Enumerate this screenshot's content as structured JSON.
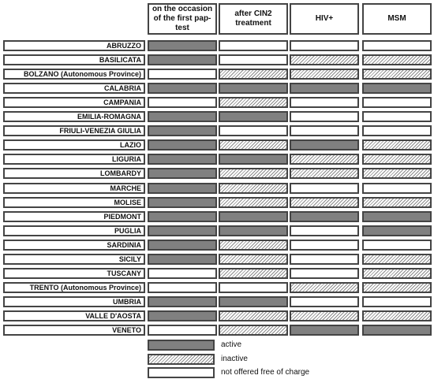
{
  "chart_data": {
    "type": "table",
    "columns": [
      "on the occasion of the first pap-test",
      "after CIN2 treatment",
      "HIV+",
      "MSM"
    ],
    "state_values": [
      "active",
      "inactive",
      "not offered free of charge"
    ],
    "rows": [
      {
        "region": "ABRUZZO",
        "states": [
          "active",
          "free",
          "free",
          "free"
        ]
      },
      {
        "region": "BASILICATA",
        "states": [
          "active",
          "free",
          "inactive",
          "inactive"
        ]
      },
      {
        "region": "BOLZANO (Autonomous Province)",
        "states": [
          "free",
          "inactive",
          "inactive",
          "inactive"
        ]
      },
      {
        "region": "CALABRIA",
        "states": [
          "active",
          "active",
          "active",
          "active"
        ]
      },
      {
        "region": "CAMPANIA",
        "states": [
          "free",
          "inactive",
          "free",
          "free"
        ]
      },
      {
        "region": "EMILIA-ROMAGNA",
        "states": [
          "active",
          "active",
          "free",
          "free"
        ]
      },
      {
        "region": "FRIULI-VENEZIA GIULIA",
        "states": [
          "active",
          "free",
          "free",
          "free"
        ]
      },
      {
        "region": "LAZIO",
        "states": [
          "active",
          "inactive",
          "active",
          "inactive"
        ]
      },
      {
        "region": "LIGURIA",
        "states": [
          "active",
          "active",
          "inactive",
          "inactive"
        ]
      },
      {
        "region": "LOMBARDY",
        "states": [
          "active",
          "inactive",
          "inactive",
          "inactive"
        ]
      },
      {
        "region": "MARCHE",
        "states": [
          "active",
          "inactive",
          "free",
          "free"
        ]
      },
      {
        "region": "MOLISE",
        "states": [
          "active",
          "inactive",
          "inactive",
          "inactive"
        ]
      },
      {
        "region": "PIEDMONT",
        "states": [
          "active",
          "active",
          "active",
          "active"
        ]
      },
      {
        "region": "PUGLIA",
        "states": [
          "active",
          "active",
          "free",
          "active"
        ]
      },
      {
        "region": "SARDINIA",
        "states": [
          "active",
          "inactive",
          "free",
          "free"
        ]
      },
      {
        "region": "SICILY",
        "states": [
          "active",
          "inactive",
          "free",
          "inactive"
        ]
      },
      {
        "region": "TUSCANY",
        "states": [
          "free",
          "inactive",
          "free",
          "inactive"
        ]
      },
      {
        "region": "TRENTO (Autonomous Province)",
        "states": [
          "free",
          "free",
          "inactive",
          "inactive"
        ]
      },
      {
        "region": "UMBRIA",
        "states": [
          "active",
          "active",
          "free",
          "free"
        ]
      },
      {
        "region": "VALLE D'AOSTA",
        "states": [
          "active",
          "inactive",
          "inactive",
          "inactive"
        ]
      },
      {
        "region": "VENETO",
        "states": [
          "free",
          "inactive",
          "active",
          "active"
        ]
      }
    ]
  },
  "legend": [
    {
      "state": "active",
      "label": "active"
    },
    {
      "state": "inactive",
      "label": "inactive"
    },
    {
      "state": "free",
      "label": "not offered free of charge"
    }
  ],
  "colors": {
    "active": "#808080",
    "inactive_stripe": "#8c8c8c",
    "free": "#ffffff",
    "border": "#444444"
  }
}
